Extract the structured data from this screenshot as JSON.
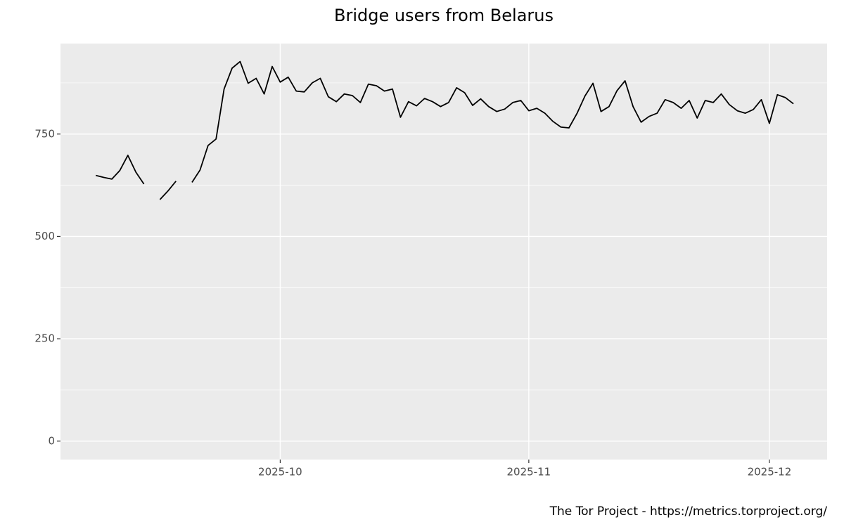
{
  "chart_data": {
    "type": "line",
    "title": "Bridge users from Belarus",
    "caption": "The Tor Project - https://metrics.torproject.org/",
    "values": [
      649,
      644,
      640,
      661,
      698,
      657,
      628,
      null,
      590,
      611,
      635,
      null,
      632,
      662,
      722,
      738,
      860,
      911,
      927,
      874,
      886,
      848,
      915,
      877,
      889,
      855,
      853,
      875,
      886,
      841,
      829,
      848,
      844,
      827,
      872,
      868,
      855,
      860,
      791,
      829,
      819,
      837,
      829,
      817,
      827,
      863,
      851,
      820,
      836,
      817,
      805,
      811,
      827,
      832,
      807,
      813,
      801,
      781,
      767,
      765,
      800,
      843,
      874,
      805,
      817,
      856,
      880,
      817,
      779,
      793,
      801,
      834,
      827,
      813,
      832,
      789,
      832,
      827,
      848,
      822,
      807,
      801,
      810,
      834,
      776,
      846,
      839,
      824
    ],
    "color": "#000000",
    "xlim": [
      -4.4,
      91.2
    ],
    "xticks": [
      {
        "value": 23,
        "label": "2025-10"
      },
      {
        "value": 54,
        "label": "2025-11"
      },
      {
        "value": 84,
        "label": "2025-12"
      }
    ],
    "ylim": [
      -45,
      971
    ],
    "yticks": [
      0,
      250,
      500,
      750
    ],
    "grid": true
  }
}
